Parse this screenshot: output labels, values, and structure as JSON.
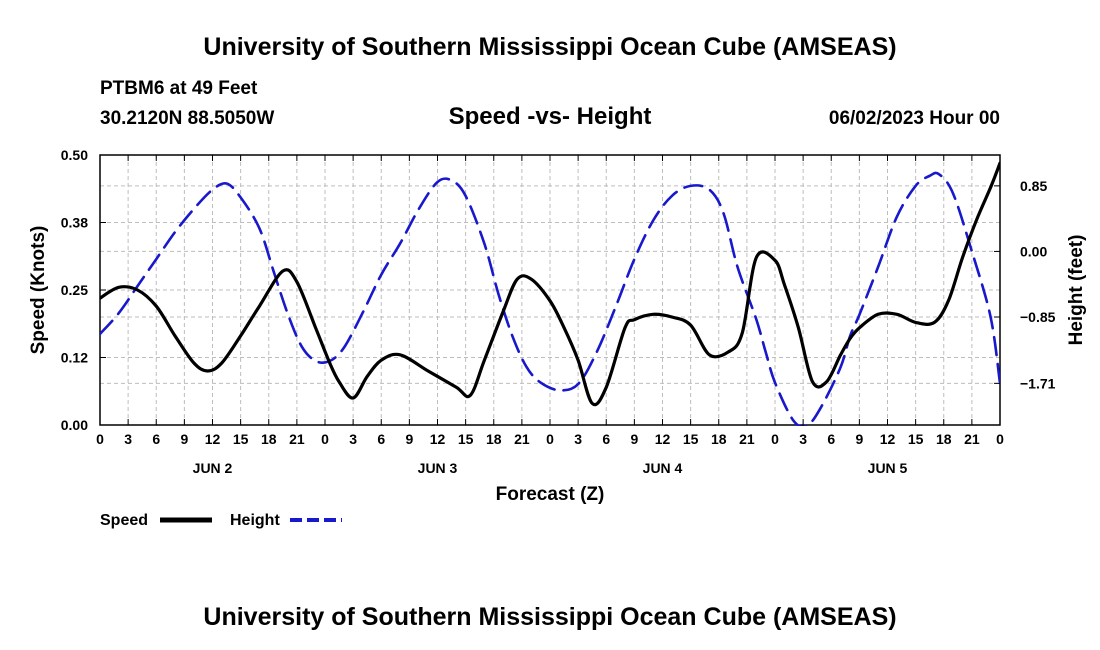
{
  "chart_data": {
    "type": "line",
    "title": "University of Southern Mississippi Ocean Cube (AMSEAS)",
    "subtitle": "Speed -vs- Height",
    "station": "PTBM6 at 49 Feet",
    "location": "30.2120N  88.5050W",
    "date": "06/02/2023 Hour 00",
    "footer_title": "University of Southern Mississippi Ocean Cube (AMSEAS)",
    "xlabel": "Forecast (Z)",
    "ylabel_left": "Speed (Knots)",
    "ylabel_right": "Height (feet)",
    "x_hours_range": [
      0,
      96
    ],
    "x_tick_labels": [
      "0",
      "3",
      "6",
      "9",
      "12",
      "15",
      "18",
      "21",
      "0",
      "3",
      "6",
      "9",
      "12",
      "15",
      "18",
      "21",
      "0",
      "3",
      "6",
      "9",
      "12",
      "15",
      "18",
      "21",
      "0",
      "3",
      "6",
      "9",
      "12",
      "15",
      "18",
      "21",
      "0"
    ],
    "day_labels": [
      {
        "label": "JUN 2",
        "hour": 12
      },
      {
        "label": "JUN 3",
        "hour": 36
      },
      {
        "label": "JUN 4",
        "hour": 60
      },
      {
        "label": "JUN 5",
        "hour": 84
      }
    ],
    "y_left": {
      "range": [
        0,
        0.5
      ],
      "ticks": [
        0.0,
        0.125,
        0.25,
        0.375,
        0.5
      ],
      "tick_labels": [
        "0.00",
        "0.12",
        "0.25",
        "0.38",
        "0.50"
      ]
    },
    "y_right": {
      "range": [
        -2.25,
        1.25
      ],
      "ticks": [
        0.85,
        0.0,
        -0.85,
        -1.71
      ],
      "tick_labels": [
        "0.85",
        "0.00",
        "−0.85",
        "−1.71"
      ]
    },
    "series": [
      {
        "name": "Speed",
        "axis": "left",
        "color": "#000000",
        "dash": "solid",
        "x": [
          0,
          2,
          4,
          6,
          8,
          10,
          11.5,
          13,
          15,
          17,
          19.5,
          21,
          23,
          24.5,
          25.5,
          27,
          28.5,
          30,
          32,
          35,
          38,
          39.5,
          41,
          43,
          44.5,
          46,
          48,
          49.5,
          51,
          52.5,
          54,
          56,
          57,
          59,
          61,
          63,
          65,
          67,
          68.5,
          70,
          72,
          73,
          74.5,
          76,
          77.5,
          79,
          80,
          81,
          83,
          85,
          87,
          89,
          90.5,
          92,
          93.5,
          95,
          96
        ],
        "values": [
          0.235,
          0.255,
          0.25,
          0.22,
          0.165,
          0.115,
          0.1,
          0.115,
          0.165,
          0.22,
          0.285,
          0.265,
          0.18,
          0.115,
          0.08,
          0.05,
          0.09,
          0.12,
          0.13,
          0.1,
          0.07,
          0.055,
          0.12,
          0.21,
          0.27,
          0.27,
          0.23,
          0.18,
          0.12,
          0.04,
          0.07,
          0.18,
          0.195,
          0.205,
          0.2,
          0.185,
          0.13,
          0.135,
          0.17,
          0.31,
          0.305,
          0.26,
          0.18,
          0.08,
          0.08,
          0.13,
          0.16,
          0.18,
          0.205,
          0.205,
          0.19,
          0.19,
          0.23,
          0.31,
          0.38,
          0.44,
          0.485
        ]
      },
      {
        "name": "Height",
        "axis": "right",
        "color": "#1818cc",
        "dash": "dashed",
        "x": [
          0,
          2,
          4,
          6,
          8,
          10,
          12,
          13.5,
          15,
          17,
          18.5,
          20,
          21.5,
          23,
          24.5,
          26,
          28,
          30,
          32,
          34,
          36,
          37.5,
          39,
          41,
          42.5,
          44,
          45.5,
          47,
          49,
          51,
          53,
          55,
          57,
          59,
          61,
          63,
          65,
          66.5,
          68,
          70,
          71,
          72,
          74,
          75.5,
          77,
          79,
          80,
          81,
          83,
          85,
          87,
          88.5,
          89.5,
          91,
          93,
          95,
          96
        ],
        "values": [
          -1.07,
          -0.8,
          -0.45,
          -0.1,
          0.25,
          0.55,
          0.8,
          0.88,
          0.7,
          0.3,
          -0.25,
          -0.8,
          -1.23,
          -1.42,
          -1.42,
          -1.25,
          -0.8,
          -0.3,
          0.1,
          0.55,
          0.9,
          0.92,
          0.72,
          0.1,
          -0.55,
          -1.1,
          -1.5,
          -1.7,
          -1.8,
          -1.72,
          -1.3,
          -0.72,
          -0.1,
          0.4,
          0.72,
          0.85,
          0.8,
          0.5,
          -0.2,
          -0.88,
          -1.3,
          -1.7,
          -2.2,
          -2.25,
          -2.0,
          -1.5,
          -1.1,
          -0.82,
          -0.2,
          0.45,
          0.85,
          0.98,
          1.0,
          0.75,
          0.0,
          -0.85,
          -1.71
        ]
      }
    ],
    "legend": [
      {
        "label": "Speed",
        "color": "#000000",
        "dash": "solid"
      },
      {
        "label": "Height",
        "color": "#1818cc",
        "dash": "dashed"
      }
    ]
  }
}
